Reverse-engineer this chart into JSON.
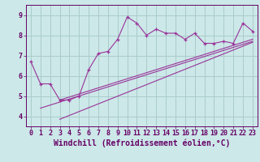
{
  "xlabel": "Windchill (Refroidissement éolien,°C)",
  "background_color": "#cce8e8",
  "line_color": "#993399",
  "xlim": [
    -0.5,
    23.5
  ],
  "ylim": [
    3.5,
    9.5
  ],
  "xticks": [
    0,
    1,
    2,
    3,
    4,
    5,
    6,
    7,
    8,
    9,
    10,
    11,
    12,
    13,
    14,
    15,
    16,
    17,
    18,
    19,
    20,
    21,
    22,
    23
  ],
  "yticks": [
    4,
    5,
    6,
    7,
    8,
    9
  ],
  "series1_x": [
    0,
    1,
    2,
    3,
    4,
    5,
    6,
    7,
    8,
    9,
    10,
    11,
    12,
    13,
    14,
    15,
    16,
    17,
    18,
    19,
    20,
    21,
    22,
    23
  ],
  "series1_y": [
    6.7,
    5.6,
    5.6,
    4.8,
    4.8,
    5.0,
    6.3,
    7.1,
    7.2,
    7.8,
    8.9,
    8.6,
    8.0,
    8.3,
    8.1,
    8.1,
    7.8,
    8.1,
    7.6,
    7.6,
    7.7,
    7.6,
    8.6,
    8.2
  ],
  "reg_line1_x": [
    1,
    23
  ],
  "reg_line1_y": [
    4.4,
    7.7
  ],
  "reg_line2_x": [
    3,
    23
  ],
  "reg_line2_y": [
    3.85,
    7.65
  ],
  "reg_line3_x": [
    3,
    23
  ],
  "reg_line3_y": [
    4.8,
    7.8
  ],
  "grid_color": "#aacccc",
  "font_color": "#660066",
  "tick_fontsize": 6,
  "xlabel_fontsize": 7
}
